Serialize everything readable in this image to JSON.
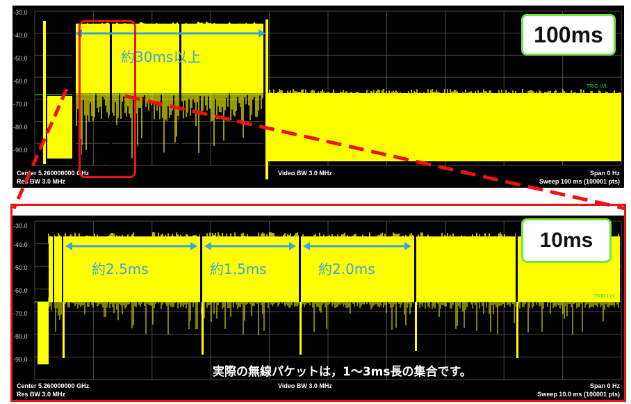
{
  "chart_data": [
    {
      "type": "line",
      "title": "",
      "y_tick_labels": [
        "-30.0",
        "-40.0",
        "-50.0",
        "-60.0",
        "-70.0",
        "-80.0",
        "-90.0"
      ],
      "ylim": [
        -100,
        -25
      ],
      "sweep_time_ms": 100,
      "grid": true,
      "trigger_label": "TRIG LVL",
      "trigger_level_dbm": -63,
      "series": [
        {
          "x_ms": [
            0,
            1,
            4,
            5,
            8,
            13,
            13.5,
            16,
            26,
            27,
            28,
            38,
            38.5,
            100
          ],
          "peak_dbm": [
            -35,
            -35,
            -35,
            -35,
            -35,
            -35,
            -35,
            -35,
            -35,
            -35,
            -35,
            -35,
            -67,
            -67
          ]
        }
      ],
      "footer": {
        "center": "Center 5.260000000 GHz",
        "res_bw": "Res BW 3.0 MHz",
        "video_bw": "Video BW 3.0 MHz",
        "span": "Span 0 Hz",
        "sweep": "Sweep 100 ms (100001 pts)"
      },
      "annotations": {
        "duration": "約30ms以上",
        "badge": "100ms"
      }
    },
    {
      "type": "line",
      "title": "",
      "y_tick_labels": [
        "-30.0",
        "-40.0",
        "-50.0",
        "-60.0",
        "-70.0",
        "-80.0",
        "-90.0"
      ],
      "ylim": [
        -100,
        -25
      ],
      "sweep_time_ms": 10,
      "grid": true,
      "trigger_label": "TRIG LVL",
      "trigger_level_dbm": -63,
      "packet_gap_positions_ms": [
        0.7,
        3.0,
        4.5,
        6.5,
        8.2
      ],
      "packet_durations_ms": [
        2.5,
        1.5,
        2.0
      ],
      "footer": {
        "center": "Center 5.260000000 GHz",
        "res_bw": "Res BW 3.0 MHz",
        "video_bw": "Video BW 3.0 MHz",
        "span": "Span 0 Hz",
        "sweep": "Sweep 10.0 ms (100001 pts)"
      },
      "annotations": {
        "durations": [
          "約2.5ms",
          "約1.5ms",
          "約2.0ms"
        ],
        "badge": "10ms",
        "note": "実際の無線パケットは，1～3ms長の集合です。"
      }
    }
  ],
  "colors": {
    "trace": "#ffff00",
    "grid": "#4a4a4a",
    "trig": "#2ee02e",
    "arrow": "#3aa5e0",
    "highlight": "#ee1111",
    "badge_border": "#6fe640"
  }
}
